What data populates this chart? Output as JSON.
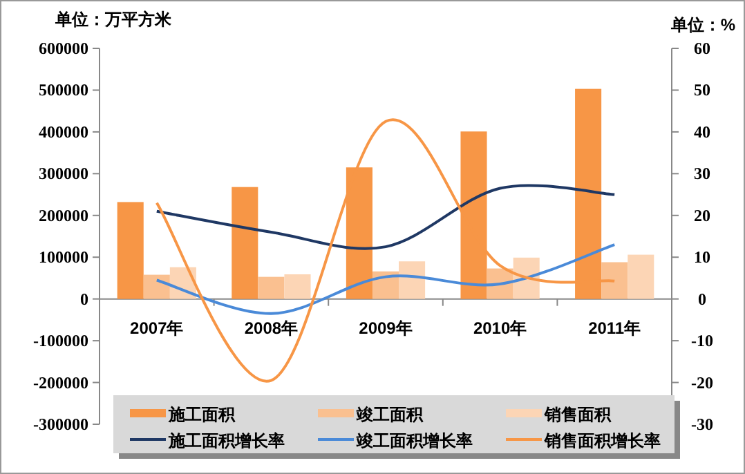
{
  "chart_data": {
    "type": "bar",
    "ylabel": "单位：万平方米",
    "y2label": "单位：%",
    "categories": [
      "2007年",
      "2008年",
      "2009年",
      "2010年",
      "2011年"
    ],
    "series": [
      {
        "name": "施工面积",
        "color": "#f79646",
        "values": [
          232000,
          268000,
          315000,
          401000,
          503000
        ]
      },
      {
        "name": "竣工面积",
        "color": "#fac090",
        "values": [
          58000,
          53000,
          66000,
          73000,
          88000
        ]
      },
      {
        "name": "销售面积",
        "color": "#fcd5b5",
        "values": [
          76000,
          59000,
          90000,
          99000,
          106000
        ]
      },
      {
        "name": "施工面积增长率",
        "type": "line",
        "axis": "y2",
        "color": "#1f3864",
        "values": [
          21,
          16,
          12.5,
          26.5,
          25
        ]
      },
      {
        "name": "竣工面积增长率",
        "type": "line",
        "axis": "y2",
        "color": "#4a8ad8",
        "values": [
          4.5,
          -3.5,
          5.3,
          3.6,
          13
        ]
      },
      {
        "name": "销售面积增长率",
        "type": "line",
        "axis": "y2",
        "color": "#f79646",
        "values": [
          23,
          -19.5,
          42.5,
          8,
          4.3
        ]
      }
    ],
    "ylim": [
      -300000,
      600000
    ],
    "yticks": [
      -300000,
      -200000,
      -100000,
      0,
      100000,
      200000,
      300000,
      400000,
      500000,
      600000
    ],
    "y2lim": [
      -30,
      60
    ],
    "y2ticks": [
      -30,
      -20,
      -10,
      0,
      10,
      20,
      30,
      40,
      50,
      60
    ],
    "legend": "bottom"
  }
}
